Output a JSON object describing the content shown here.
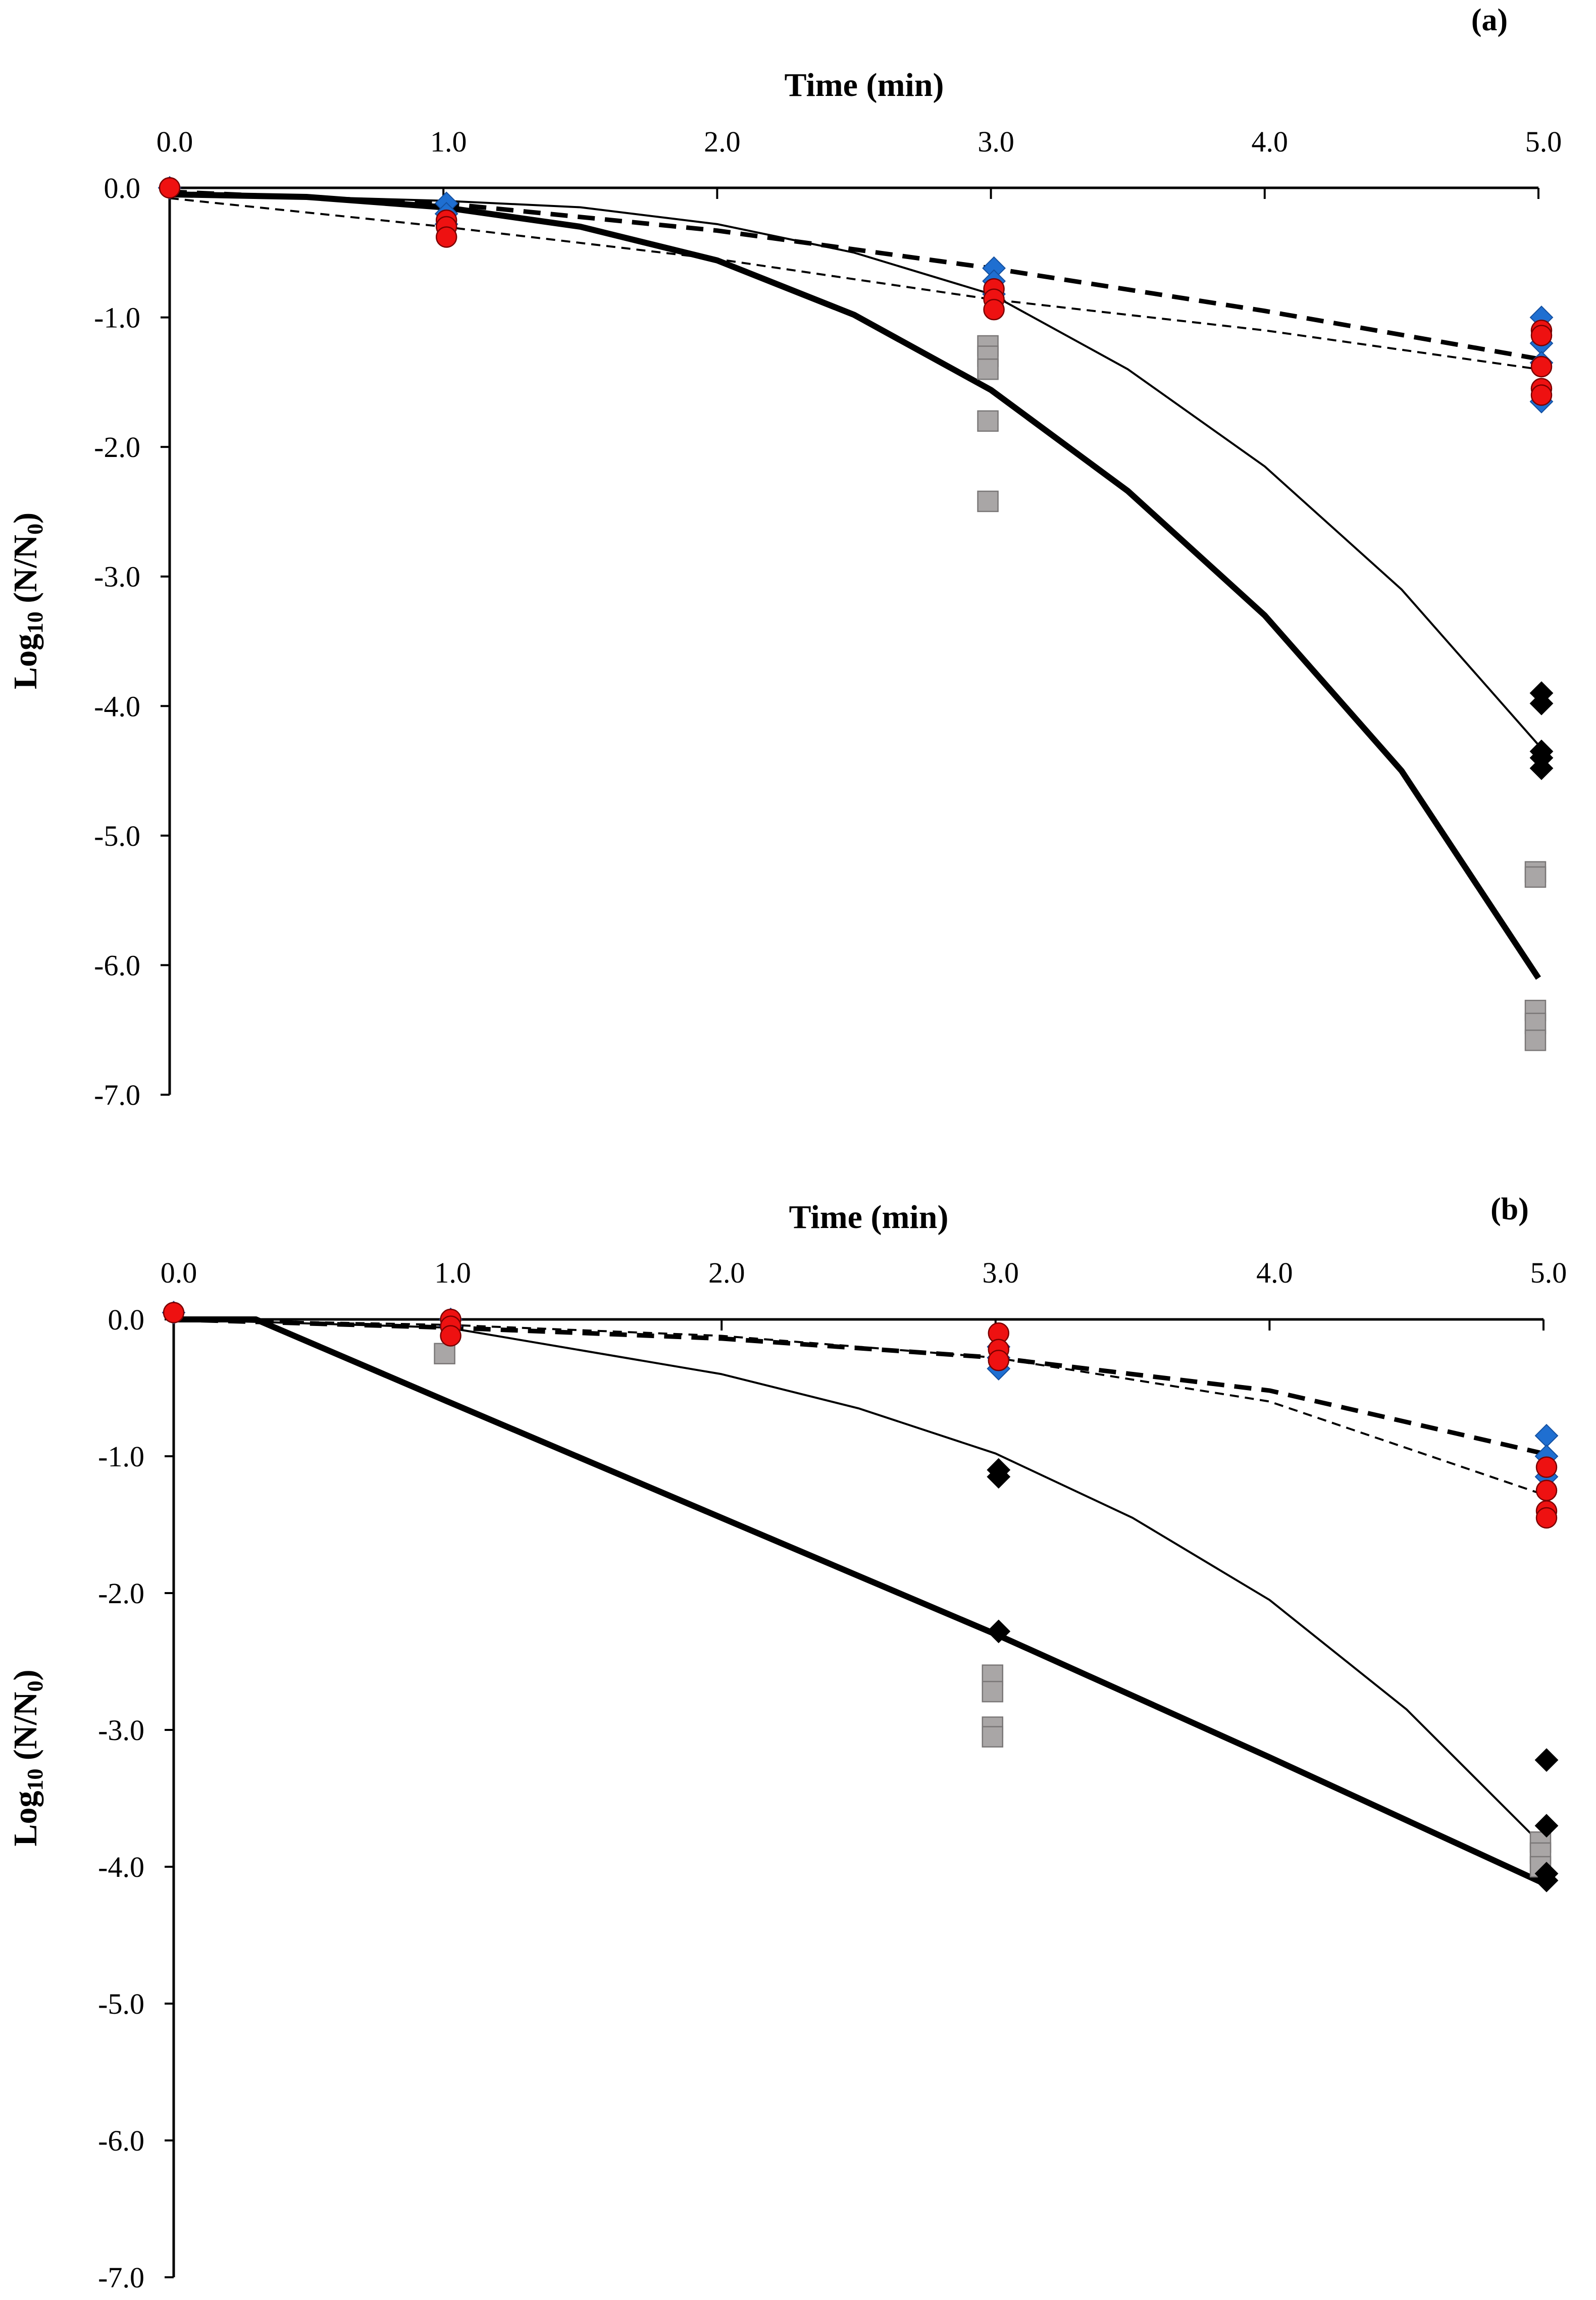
{
  "chart_data": [
    {
      "type": "scatter",
      "panel_label": "(a)",
      "title": "",
      "xlabel": "Time (min)",
      "ylabel_main": "Log",
      "ylabel_sub": "10",
      "ylabel_rest": " (N/N",
      "ylabel_sub2": "0",
      "ylabel_end": ")",
      "x_axis_position": "top",
      "xlim": [
        0,
        5
      ],
      "ylim": [
        -7,
        0
      ],
      "xticks": [
        0,
        1,
        2,
        3,
        4,
        5
      ],
      "xtick_labels": [
        "0.0",
        "1.0",
        "2.0",
        "3.0",
        "4.0",
        "5.0"
      ],
      "yticks": [
        0,
        -1,
        -2,
        -3,
        -4,
        -5,
        -6,
        -7
      ],
      "ytick_labels": [
        "0.0",
        "-1.0",
        "-2.0",
        "-3.0",
        "-4.0",
        "-5.0",
        "-6.0",
        "-7.0"
      ],
      "grid": false,
      "series": [
        {
          "marker": "diamond",
          "color": "#1f6fd1",
          "points": [
            [
              0,
              0
            ],
            [
              1,
              -0.12
            ],
            [
              1,
              -0.2
            ],
            [
              1,
              -0.28
            ],
            [
              3,
              -0.62
            ],
            [
              3,
              -0.72
            ],
            [
              3,
              -0.82
            ],
            [
              5,
              -1.0
            ],
            [
              5,
              -1.2
            ],
            [
              5,
              -1.35
            ],
            [
              5,
              -1.65
            ]
          ]
        },
        {
          "marker": "circle",
          "color": "#ee1111",
          "points": [
            [
              0,
              0
            ],
            [
              1,
              -0.25
            ],
            [
              1,
              -0.3
            ],
            [
              1,
              -0.38
            ],
            [
              3,
              -0.78
            ],
            [
              3,
              -0.86
            ],
            [
              3,
              -0.94
            ],
            [
              5,
              -1.1
            ],
            [
              5,
              -1.14
            ],
            [
              5,
              -1.38
            ],
            [
              5,
              -1.55
            ],
            [
              5,
              -1.6
            ]
          ]
        },
        {
          "marker": "diamond",
          "color": "#000000",
          "points": [
            [
              5,
              -3.9
            ],
            [
              5,
              -3.98
            ],
            [
              5,
              -4.35
            ],
            [
              5,
              -4.4
            ],
            [
              5,
              -4.48
            ]
          ]
        },
        {
          "marker": "square",
          "color": "#a9a6a6",
          "points": [
            [
              3,
              -1.22
            ],
            [
              3,
              -1.3
            ],
            [
              3,
              -1.4
            ],
            [
              3,
              -1.8
            ],
            [
              3,
              -2.42
            ],
            [
              5,
              -5.28
            ],
            [
              5,
              -5.32
            ],
            [
              5,
              -6.35
            ],
            [
              5,
              -6.45
            ],
            [
              5,
              -6.58
            ]
          ]
        }
      ],
      "fits": [
        {
          "style": "thick-solid",
          "points": [
            [
              0,
              -0.05
            ],
            [
              0.5,
              -0.07
            ],
            [
              1,
              -0.15
            ],
            [
              1.5,
              -0.3
            ],
            [
              2,
              -0.56
            ],
            [
              2.5,
              -0.98
            ],
            [
              3,
              -1.56
            ],
            [
              3.5,
              -2.34
            ],
            [
              4,
              -3.3
            ],
            [
              4.5,
              -4.5
            ],
            [
              5,
              -6.1
            ]
          ]
        },
        {
          "style": "thin-solid",
          "points": [
            [
              0,
              -0.04
            ],
            [
              1,
              -0.1
            ],
            [
              1.5,
              -0.15
            ],
            [
              2,
              -0.28
            ],
            [
              2.5,
              -0.5
            ],
            [
              3,
              -0.82
            ],
            [
              3.5,
              -1.4
            ],
            [
              4,
              -2.15
            ],
            [
              4.5,
              -3.1
            ],
            [
              5,
              -4.3
            ]
          ]
        },
        {
          "style": "thick-dashed",
          "points": [
            [
              0,
              -0.03
            ],
            [
              1,
              -0.12
            ],
            [
              2,
              -0.33
            ],
            [
              3,
              -0.62
            ],
            [
              4,
              -0.95
            ],
            [
              5,
              -1.32
            ]
          ]
        },
        {
          "style": "thin-dashed",
          "points": [
            [
              0,
              -0.08
            ],
            [
              1,
              -0.3
            ],
            [
              2,
              -0.55
            ],
            [
              3,
              -0.86
            ],
            [
              4,
              -1.1
            ],
            [
              5,
              -1.4
            ]
          ]
        }
      ]
    },
    {
      "type": "scatter",
      "panel_label": "(b)",
      "title": "",
      "xlabel": "Time (min)",
      "ylabel_main": "Log",
      "ylabel_sub": "10",
      "ylabel_rest": " (N/N",
      "ylabel_sub2": "0",
      "ylabel_end": ")",
      "x_axis_position": "top",
      "xlim": [
        0,
        5
      ],
      "ylim": [
        -7,
        0
      ],
      "xticks": [
        0,
        1,
        2,
        3,
        4,
        5
      ],
      "xtick_labels": [
        "0.0",
        "1.0",
        "2.0",
        "3.0",
        "4.0",
        "5.0"
      ],
      "yticks": [
        0,
        -1,
        -2,
        -3,
        -4,
        -5,
        -6,
        -7
      ],
      "ytick_labels": [
        "0.0",
        "-1.0",
        "-2.0",
        "-3.0",
        "-4.0",
        "-5.0",
        "-6.0",
        "-7.0"
      ],
      "grid": false,
      "series": [
        {
          "marker": "diamond",
          "color": "#1f6fd1",
          "points": [
            [
              0,
              0.05
            ],
            [
              1,
              0
            ],
            [
              1,
              -0.05
            ],
            [
              3,
              -0.2
            ],
            [
              3,
              -0.28
            ],
            [
              3,
              -0.36
            ],
            [
              5,
              -0.85
            ],
            [
              5,
              -1.0
            ],
            [
              5,
              -1.15
            ]
          ]
        },
        {
          "marker": "circle",
          "color": "#ee1111",
          "points": [
            [
              0,
              0.05
            ],
            [
              1,
              0
            ],
            [
              1,
              -0.05
            ],
            [
              1,
              -0.12
            ],
            [
              3,
              -0.1
            ],
            [
              3,
              -0.22
            ],
            [
              3,
              -0.3
            ],
            [
              5,
              -1.08
            ],
            [
              5,
              -1.25
            ],
            [
              5,
              -1.4
            ],
            [
              5,
              -1.45
            ]
          ]
        },
        {
          "marker": "diamond",
          "color": "#000000",
          "points": [
            [
              3,
              -1.1
            ],
            [
              3,
              -1.15
            ],
            [
              3,
              -2.28
            ],
            [
              5,
              -3.22
            ],
            [
              5,
              -3.7
            ],
            [
              5,
              -4.05
            ],
            [
              5,
              -4.1
            ]
          ]
        },
        {
          "marker": "square",
          "color": "#a9a6a6",
          "points": [
            [
              1,
              -0.25
            ],
            [
              3,
              -2.6
            ],
            [
              3,
              -2.72
            ],
            [
              3,
              -2.98
            ],
            [
              3,
              -3.05
            ],
            [
              5,
              -3.82
            ],
            [
              5,
              -3.9
            ],
            [
              5,
              -4.0
            ]
          ]
        }
      ],
      "fits": [
        {
          "style": "thick-solid",
          "points": [
            [
              0,
              0
            ],
            [
              0.3,
              0
            ],
            [
              1,
              -0.6
            ],
            [
              2,
              -1.45
            ],
            [
              3,
              -2.3
            ],
            [
              4,
              -3.2
            ],
            [
              5,
              -4.12
            ]
          ]
        },
        {
          "style": "thin-solid",
          "points": [
            [
              0,
              0
            ],
            [
              1,
              -0.06
            ],
            [
              2,
              -0.4
            ],
            [
              2.5,
              -0.65
            ],
            [
              3,
              -0.98
            ],
            [
              3.5,
              -1.45
            ],
            [
              4,
              -2.05
            ],
            [
              4.5,
              -2.85
            ],
            [
              5,
              -3.85
            ]
          ]
        },
        {
          "style": "thick-dashed",
          "points": [
            [
              0,
              0
            ],
            [
              1,
              -0.06
            ],
            [
              2,
              -0.14
            ],
            [
              3,
              -0.28
            ],
            [
              4,
              -0.52
            ],
            [
              5,
              -0.98
            ]
          ]
        },
        {
          "style": "thin-dashed",
          "points": [
            [
              0,
              0
            ],
            [
              1,
              -0.04
            ],
            [
              2,
              -0.12
            ],
            [
              3,
              -0.28
            ],
            [
              4,
              -0.6
            ],
            [
              5,
              -1.28
            ]
          ]
        }
      ]
    }
  ]
}
